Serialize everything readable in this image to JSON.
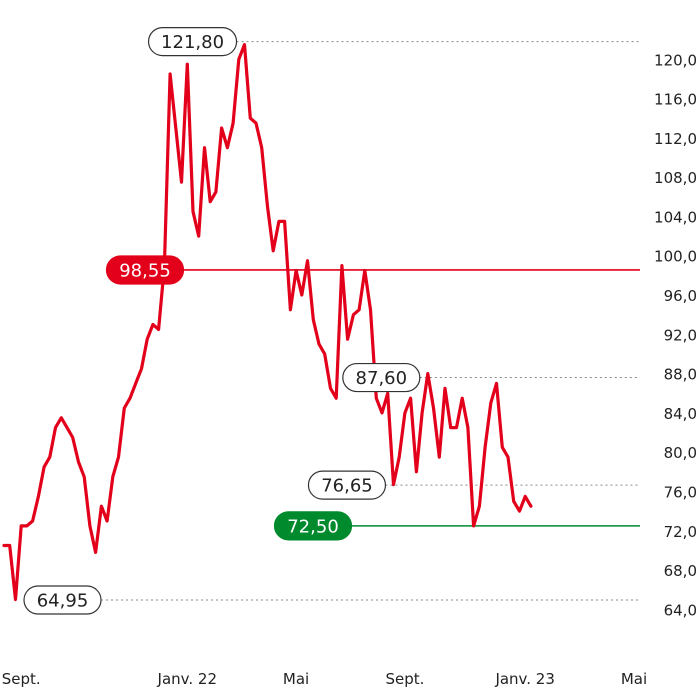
{
  "chart_data": {
    "type": "line",
    "ylim": [
      62.0,
      124.0
    ],
    "y_ticks": [
      "64,0",
      "68,0",
      "72,0",
      "76,0",
      "80,0",
      "84,0",
      "88,0",
      "92,0",
      "96,0",
      "100,0",
      "104,0",
      "108,0",
      "112,0",
      "116,0",
      "120,0"
    ],
    "x_ticks": [
      {
        "label": "Sept.",
        "pos": 3
      },
      {
        "label": "Janv. 22",
        "pos": 32
      },
      {
        "label": "Mai",
        "pos": 51
      },
      {
        "label": "Sept.",
        "pos": 70
      },
      {
        "label": "Janv. 23",
        "pos": 91
      },
      {
        "label": "Mai",
        "pos": 110
      }
    ],
    "x_range": [
      0,
      110
    ],
    "series": [
      {
        "color": "#e3001b",
        "values": [
          70.5,
          70.5,
          65.0,
          72.5,
          72.5,
          73.0,
          75.5,
          78.5,
          79.5,
          82.5,
          83.5,
          82.5,
          81.5,
          79.0,
          77.5,
          72.5,
          69.8,
          74.5,
          73.0,
          77.5,
          79.5,
          84.5,
          85.5,
          87.0,
          88.5,
          91.5,
          93.0,
          92.5,
          99.0,
          118.5,
          113.0,
          107.5,
          119.5,
          104.5,
          102.0,
          111.0,
          105.5,
          106.5,
          113.0,
          111.0,
          113.5,
          120.0,
          121.5,
          114.0,
          113.5,
          111.0,
          105.0,
          100.5,
          103.5,
          103.5,
          94.5,
          98.5,
          96.0,
          99.5,
          93.5,
          91.0,
          90.0,
          86.5,
          85.5,
          99.0,
          91.5,
          94.0,
          94.5,
          98.5,
          94.5,
          85.5,
          84.0,
          86.0,
          76.7,
          79.5,
          84.0,
          85.5,
          78.0,
          84.0,
          88.0,
          84.5,
          79.5,
          86.5,
          82.5,
          82.5,
          85.5,
          82.5,
          72.5,
          74.5,
          80.5,
          85.0,
          87.0,
          80.5,
          79.5,
          75.0,
          74.0,
          75.5,
          74.5
        ]
      }
    ],
    "annotations": [
      {
        "text": "121,80",
        "value": 121.8,
        "style": "callout",
        "line": "dotted"
      },
      {
        "text": "98,55",
        "value": 98.55,
        "style": "red-badge",
        "line": "solid-red"
      },
      {
        "text": "87,60",
        "value": 87.6,
        "style": "callout",
        "line": "dotted"
      },
      {
        "text": "76,65",
        "value": 76.65,
        "style": "callout",
        "line": "dotted"
      },
      {
        "text": "72,50",
        "value": 72.5,
        "style": "green-badge",
        "line": "solid-green"
      },
      {
        "text": "64,95",
        "value": 64.95,
        "style": "callout",
        "line": "dotted"
      }
    ],
    "colors": {
      "line": "#e3001b",
      "red": "#e3001b",
      "green": "#008a2e",
      "dotted": "#888888"
    }
  }
}
